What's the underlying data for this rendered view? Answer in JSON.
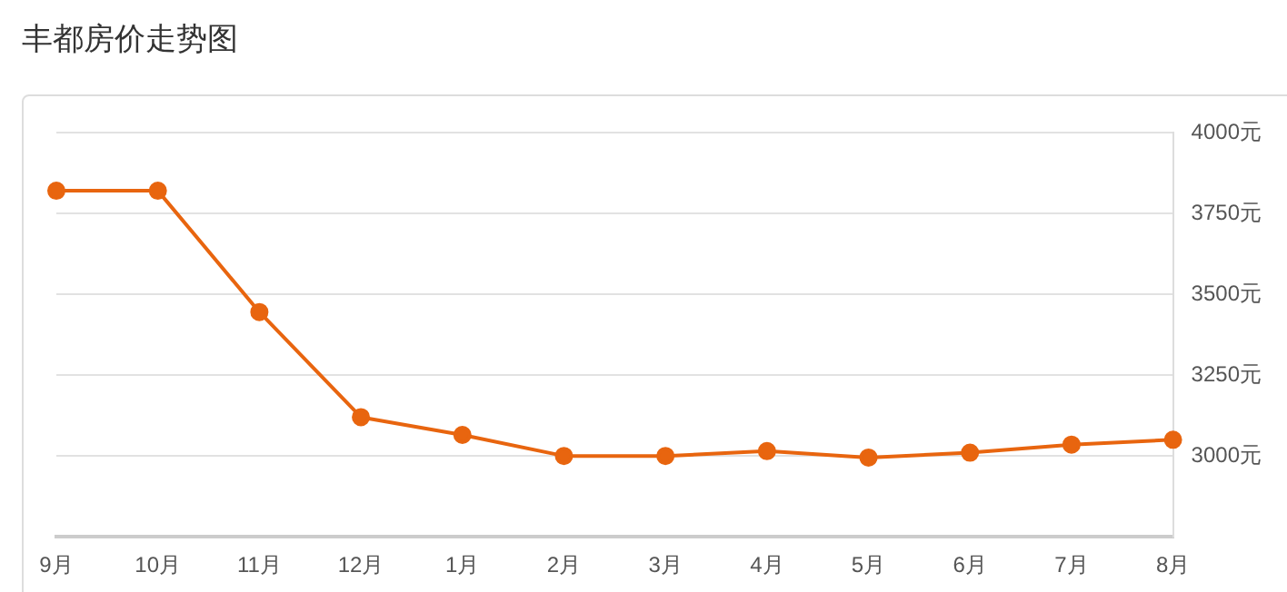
{
  "chart_data": {
    "type": "line",
    "title": "丰都房价走势图",
    "categories": [
      "9月",
      "10月",
      "11月",
      "12月",
      "1月",
      "2月",
      "3月",
      "4月",
      "5月",
      "6月",
      "7月",
      "8月"
    ],
    "series": [
      {
        "color": "#e8650f",
        "values": [
          3820,
          3820,
          3445,
          3120,
          3065,
          3000,
          3000,
          3015,
          2995,
          3010,
          3035,
          3050
        ]
      }
    ],
    "ylim": [
      2750,
      4000
    ],
    "yticks": [
      {
        "value": 3000,
        "label": "3000元"
      },
      {
        "value": 3250,
        "label": "3250元"
      },
      {
        "value": 3500,
        "label": "3500元"
      },
      {
        "value": 3750,
        "label": "3750元"
      },
      {
        "value": 4000,
        "label": "4000元"
      }
    ],
    "grid": "y",
    "legend": false,
    "marker": "circle",
    "line_style": "solid"
  }
}
